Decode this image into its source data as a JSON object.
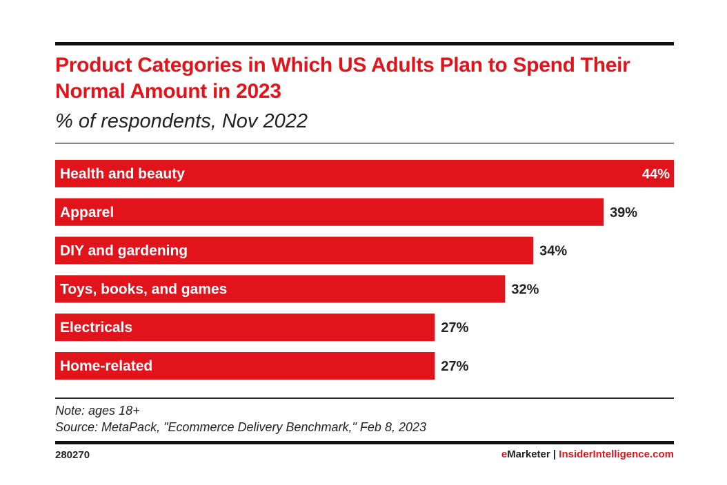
{
  "colors": {
    "bar": "#e2141b",
    "title": "#e2141b",
    "text": "#222222",
    "inside_label": "#ffffff"
  },
  "chart_data": {
    "type": "bar",
    "orientation": "horizontal",
    "title": "Product Categories in Which US Adults Plan to Spend Their Normal Amount in 2023",
    "subtitle": "% of respondents, Nov 2022",
    "categories": [
      "Health and beauty",
      "Apparel",
      "DIY and gardening",
      "Toys, books, and games",
      "Electricals",
      "Home-related"
    ],
    "values": [
      44,
      39,
      34,
      32,
      27,
      27
    ],
    "value_labels": [
      "44%",
      "39%",
      "34%",
      "32%",
      "27%",
      "27%"
    ],
    "xlim": [
      0,
      44
    ],
    "grid": false
  },
  "footer": {
    "note": "Note: ages 18+",
    "source": "Source: MetaPack, \"Ecommerce Delivery Benchmark,\" Feb 8, 2023",
    "chart_id": "280270",
    "brand_e": "e",
    "brand_marketer": "Marketer",
    "separator": "|",
    "brand_site": "InsiderIntelligence.com"
  }
}
